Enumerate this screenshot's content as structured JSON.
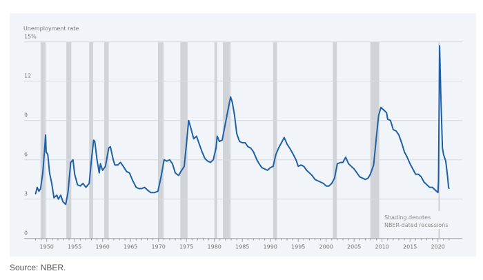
{
  "chart_data": {
    "type": "line",
    "ylabel": "Unemployment rate",
    "ylim": [
      0,
      15
    ],
    "xlim": [
      1948,
      2022
    ],
    "yticks": [
      "0",
      "3",
      "6",
      "9",
      "12",
      "15%"
    ],
    "ytick_values": [
      0,
      3,
      6,
      9,
      12,
      15
    ],
    "xticks": [
      "1950",
      "1955",
      "1960",
      "1965",
      "1970",
      "1975",
      "1980",
      "1985",
      "1990",
      "1995",
      "2000",
      "2005",
      "2010",
      "2015",
      "2020"
    ],
    "grid": true,
    "line_color": "#1f5fa8",
    "recession_color": "#d0d4d9",
    "annotation": [
      "Shading denotes",
      "NBER-dated recessions"
    ],
    "recessions": [
      [
        1948.9,
        1949.8
      ],
      [
        1953.5,
        1954.4
      ],
      [
        1957.6,
        1958.3
      ],
      [
        1960.3,
        1961.1
      ],
      [
        1969.9,
        1970.9
      ],
      [
        1973.9,
        1975.2
      ],
      [
        1980.0,
        1980.5
      ],
      [
        1981.5,
        1982.9
      ],
      [
        1990.5,
        1991.2
      ],
      [
        2001.2,
        2001.9
      ],
      [
        2007.9,
        2009.5
      ],
      [
        2020.1,
        2020.3
      ]
    ],
    "x": [
      1948.0,
      1948.3,
      1948.6,
      1948.9,
      1949.3,
      1949.6,
      1949.8,
      1949.9,
      1950.2,
      1950.5,
      1950.9,
      1951.3,
      1951.8,
      1952.1,
      1952.5,
      1952.9,
      1953.4,
      1953.8,
      1954.3,
      1954.7,
      1955.0,
      1955.5,
      1956.0,
      1956.5,
      1957.0,
      1957.6,
      1958.0,
      1958.4,
      1958.6,
      1959.0,
      1959.4,
      1959.6,
      1960.0,
      1960.5,
      1961.1,
      1961.4,
      1961.9,
      1962.2,
      1962.7,
      1963.2,
      1963.7,
      1964.3,
      1964.8,
      1965.4,
      1966.0,
      1966.5,
      1967.0,
      1967.5,
      1968.0,
      1968.6,
      1969.3,
      1969.9,
      1970.5,
      1971.0,
      1971.5,
      1972.0,
      1972.5,
      1973.0,
      1973.6,
      1974.0,
      1974.6,
      1975.0,
      1975.4,
      1975.8,
      1976.3,
      1976.8,
      1977.3,
      1977.8,
      1978.3,
      1978.8,
      1979.3,
      1979.8,
      1980.3,
      1980.5,
      1980.9,
      1981.4,
      1981.8,
      1982.3,
      1982.9,
      1983.2,
      1983.6,
      1984.0,
      1984.5,
      1985.0,
      1985.5,
      1986.0,
      1986.5,
      1987.0,
      1987.6,
      1988.0,
      1988.5,
      1989.0,
      1989.5,
      1990.0,
      1990.5,
      1991.0,
      1991.5,
      1992.0,
      1992.5,
      1993.0,
      1993.6,
      1994.0,
      1994.6,
      1995.0,
      1995.5,
      1996.0,
      1996.5,
      1997.0,
      1997.5,
      1998.0,
      1998.5,
      1999.0,
      1999.5,
      2000.0,
      2000.5,
      2001.0,
      2001.5,
      2002.0,
      2002.6,
      2003.0,
      2003.5,
      2004.0,
      2004.5,
      2005.0,
      2005.5,
      2006.0,
      2006.5,
      2007.0,
      2007.5,
      2007.9,
      2008.5,
      2009.0,
      2009.4,
      2009.8,
      2010.3,
      2010.8,
      2011.0,
      2011.5,
      2012.0,
      2012.5,
      2013.0,
      2013.5,
      2014.0,
      2014.5,
      2015.0,
      2015.5,
      2016.0,
      2016.5,
      2017.0,
      2017.5,
      2018.0,
      2018.5,
      2019.0,
      2019.5,
      2020.0,
      2020.1,
      2020.3,
      2020.5,
      2020.8,
      2021.0,
      2021.4,
      2021.7,
      2021.9,
      2022.0
    ],
    "y": [
      3.4,
      3.9,
      3.6,
      3.8,
      5.0,
      6.7,
      7.9,
      6.6,
      6.4,
      5.0,
      4.2,
      3.1,
      3.3,
      3.0,
      3.3,
      2.8,
      2.6,
      3.5,
      5.8,
      6.0,
      4.9,
      4.1,
      4.0,
      4.2,
      3.9,
      4.2,
      6.0,
      7.5,
      7.4,
      6.0,
      5.0,
      5.7,
      5.2,
      5.5,
      6.9,
      7.0,
      6.0,
      5.6,
      5.6,
      5.8,
      5.5,
      5.1,
      5.0,
      4.4,
      3.9,
      3.8,
      3.8,
      3.9,
      3.7,
      3.5,
      3.5,
      3.6,
      4.8,
      6.0,
      5.9,
      6.0,
      5.7,
      5.0,
      4.8,
      5.1,
      5.5,
      7.2,
      9.0,
      8.4,
      7.6,
      7.8,
      7.2,
      6.6,
      6.1,
      5.9,
      5.8,
      6.0,
      6.9,
      7.8,
      7.4,
      7.5,
      8.4,
      9.5,
      10.8,
      10.4,
      9.4,
      8.0,
      7.4,
      7.3,
      7.3,
      7.0,
      6.9,
      6.6,
      6.0,
      5.7,
      5.4,
      5.3,
      5.2,
      5.4,
      5.5,
      6.4,
      6.9,
      7.3,
      7.7,
      7.2,
      6.8,
      6.5,
      6.0,
      5.5,
      5.6,
      5.5,
      5.2,
      5.0,
      4.8,
      4.5,
      4.4,
      4.3,
      4.2,
      4.0,
      4.0,
      4.2,
      4.6,
      5.7,
      5.8,
      5.8,
      6.2,
      5.7,
      5.5,
      5.3,
      5.0,
      4.7,
      4.6,
      4.5,
      4.6,
      4.9,
      5.6,
      7.8,
      9.4,
      10.0,
      9.8,
      9.6,
      9.1,
      9.0,
      8.3,
      8.2,
      7.9,
      7.3,
      6.6,
      6.2,
      5.7,
      5.3,
      4.9,
      4.9,
      4.7,
      4.3,
      4.1,
      3.9,
      3.9,
      3.7,
      3.5,
      4.4,
      14.7,
      11.1,
      6.9,
      6.4,
      5.9,
      4.8,
      3.9,
      3.8
    ]
  },
  "source": "Source: NBER."
}
